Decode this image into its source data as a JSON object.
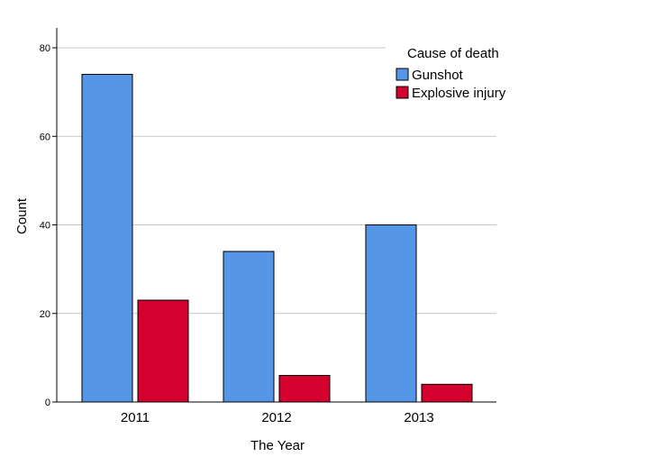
{
  "chart_data": {
    "type": "bar",
    "categories": [
      "2011",
      "2012",
      "2013"
    ],
    "series": [
      {
        "name": "Gunshot",
        "values": [
          74,
          34,
          40
        ],
        "color": "#5596e6"
      },
      {
        "name": "Explosive injury",
        "values": [
          23,
          6,
          4
        ],
        "color": "#d4002e"
      }
    ],
    "xlabel": "The Year",
    "ylabel": "Count",
    "ylim": [
      0,
      80
    ],
    "yticks": [
      0,
      20,
      40,
      60,
      80
    ],
    "grid": true,
    "legend": {
      "title": "Cause of death",
      "position": "top-right"
    }
  }
}
